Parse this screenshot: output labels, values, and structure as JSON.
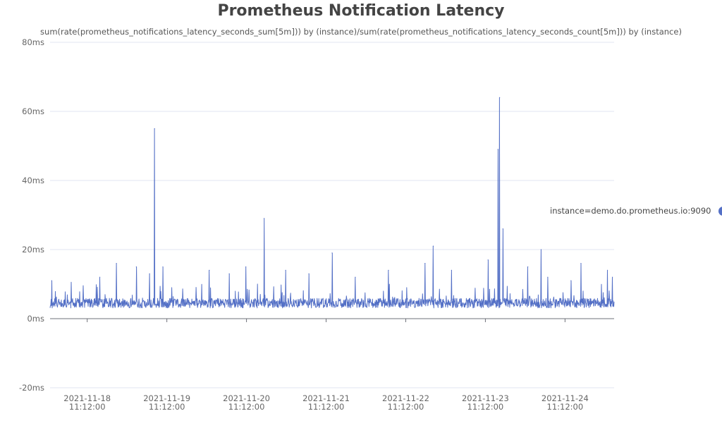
{
  "chart_data": {
    "type": "line",
    "title": "Prometheus Notification Latency",
    "subtitle": "sum(rate(prometheus_notifications_latency_seconds_sum[5m])) by (instance)/sum(rate(prometheus_notifications_latency_seconds_count[5m])) by (instance)",
    "xlabel": "",
    "ylabel": "",
    "ylim": [
      -20,
      80
    ],
    "y_unit": "ms",
    "y_ticks": [
      "80ms",
      "60ms",
      "40ms",
      "20ms",
      "0ms",
      "-20ms"
    ],
    "y_tick_values": [
      80,
      60,
      40,
      20,
      0,
      -20
    ],
    "x_ticks": [
      {
        "date": "2021-11-18",
        "time": "11:12:00"
      },
      {
        "date": "2021-11-19",
        "time": "11:12:00"
      },
      {
        "date": "2021-11-20",
        "time": "11:12:00"
      },
      {
        "date": "2021-11-21",
        "time": "11:12:00"
      },
      {
        "date": "2021-11-22",
        "time": "11:12:00"
      },
      {
        "date": "2021-11-23",
        "time": "11:12:00"
      },
      {
        "date": "2021-11-24",
        "time": "11:12:00"
      }
    ],
    "x_range": [
      "2021-11-18 00:00",
      "2021-11-25 02:00"
    ],
    "grid": true,
    "legend_position": "right",
    "series": [
      {
        "name": "instance=demo.do.prometheus.io:9090",
        "color": "#5470c6",
        "baseline_ms": 4.5,
        "points": [
          {
            "x": "2021-11-18 00:30",
            "y": 11
          },
          {
            "x": "2021-11-18 15:00",
            "y": 12
          },
          {
            "x": "2021-11-18 20:00",
            "y": 16
          },
          {
            "x": "2021-11-19 02:00",
            "y": 15
          },
          {
            "x": "2021-11-19 06:00",
            "y": 13
          },
          {
            "x": "2021-11-19 07:30",
            "y": 55
          },
          {
            "x": "2021-11-19 10:00",
            "y": 15
          },
          {
            "x": "2021-11-19 20:00",
            "y": 9
          },
          {
            "x": "2021-11-20 00:00",
            "y": 14
          },
          {
            "x": "2021-11-20 06:00",
            "y": 13
          },
          {
            "x": "2021-11-20 11:00",
            "y": 15
          },
          {
            "x": "2021-11-20 16:30",
            "y": 29
          },
          {
            "x": "2021-11-20 23:00",
            "y": 14
          },
          {
            "x": "2021-11-21 06:00",
            "y": 13
          },
          {
            "x": "2021-11-21 13:00",
            "y": 19
          },
          {
            "x": "2021-11-21 20:00",
            "y": 12
          },
          {
            "x": "2021-11-22 06:00",
            "y": 14
          },
          {
            "x": "2021-11-22 17:00",
            "y": 16
          },
          {
            "x": "2021-11-22 19:30",
            "y": 21
          },
          {
            "x": "2021-11-23 01:00",
            "y": 14
          },
          {
            "x": "2021-11-23 12:00",
            "y": 17
          },
          {
            "x": "2021-11-23 15:00",
            "y": 49
          },
          {
            "x": "2021-11-23 15:30",
            "y": 64
          },
          {
            "x": "2021-11-23 16:30",
            "y": 26
          },
          {
            "x": "2021-11-24 00:00",
            "y": 15
          },
          {
            "x": "2021-11-24 04:00",
            "y": 20
          },
          {
            "x": "2021-11-24 06:00",
            "y": 12
          },
          {
            "x": "2021-11-24 13:00",
            "y": 11
          },
          {
            "x": "2021-11-24 16:00",
            "y": 16
          },
          {
            "x": "2021-11-25 00:00",
            "y": 14
          },
          {
            "x": "2021-11-25 01:30",
            "y": 12
          }
        ]
      }
    ]
  }
}
